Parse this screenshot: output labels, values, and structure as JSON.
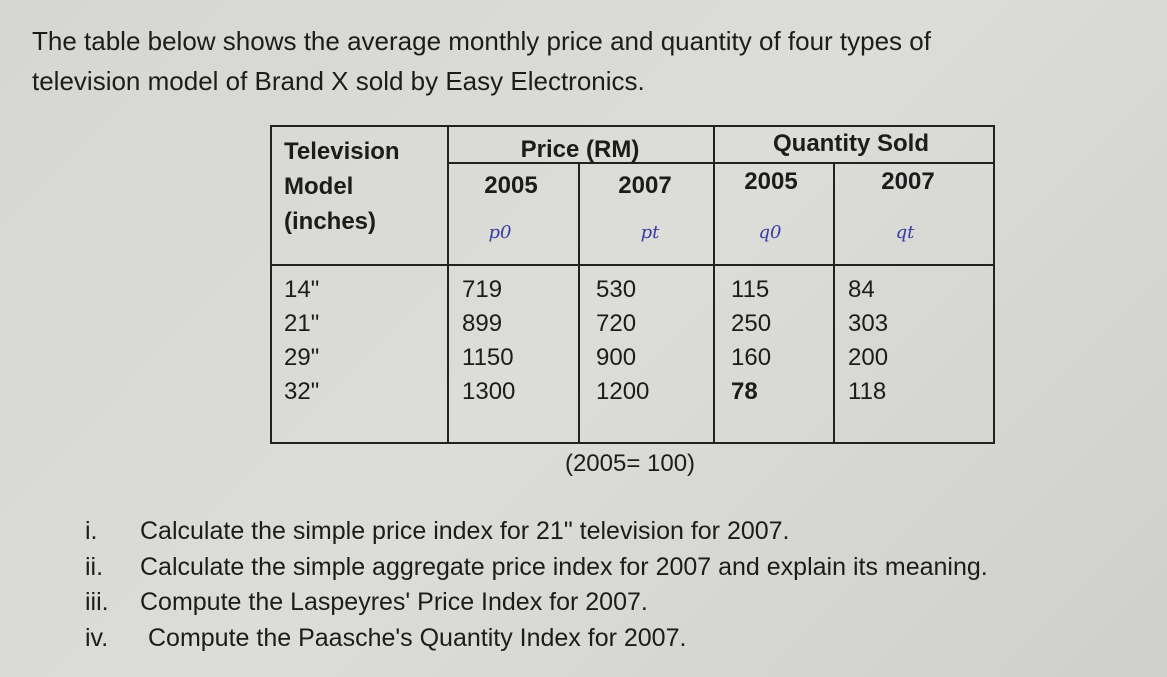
{
  "intro": [
    "The table below shows the average monthly price and quantity of four types of",
    "television model of Brand X sold by Easy Electronics."
  ],
  "table": {
    "model_header": [
      "Television",
      "Model",
      "(inches)"
    ],
    "groups": [
      "Price (RM)",
      "Quantity Sold"
    ],
    "years": [
      "2005",
      "2007",
      "2005",
      "2007"
    ],
    "handwritten": [
      "p0",
      "pt",
      "q0",
      "qt"
    ],
    "rows": [
      [
        "14\"",
        "719",
        "530",
        "115",
        "84"
      ],
      [
        "21\"",
        "899",
        "720",
        "250",
        "303"
      ],
      [
        "29\"",
        "1150",
        "900",
        "160",
        "200"
      ],
      [
        "32\"",
        "1300",
        "1200",
        "78",
        "118"
      ]
    ],
    "note": "(2005= 100)"
  },
  "questions": [
    {
      "number": "i.",
      "text": "Calculate the simple price index for 21\" television for 2007."
    },
    {
      "number": "ii.",
      "text": "Calculate the simple aggregate price index for 2007 and explain its meaning."
    },
    {
      "number": "iii.",
      "text": "Compute the Laspeyres' Price Index for 2007."
    },
    {
      "number": "iv.",
      "text": "Compute the Paasche's Quantity Index for 2007."
    }
  ]
}
